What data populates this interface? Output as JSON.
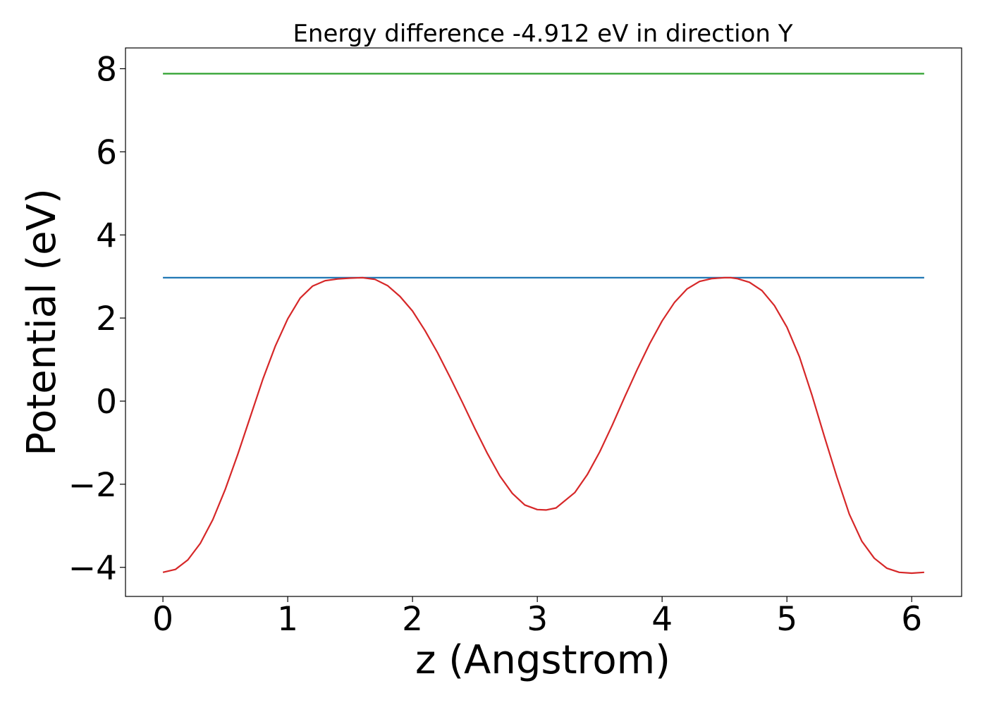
{
  "chart_data": {
    "type": "line",
    "title": "Energy difference -4.912 eV in direction Y",
    "xlabel": "z (Angstrom)",
    "ylabel": "Potential (eV)",
    "xlim": [
      -0.3,
      6.4
    ],
    "ylim": [
      -4.7,
      8.5
    ],
    "xticks": [
      0,
      1,
      2,
      3,
      4,
      5,
      6
    ],
    "xtick_labels": [
      "0",
      "1",
      "2",
      "3",
      "4",
      "5",
      "6"
    ],
    "yticks": [
      -4,
      -2,
      0,
      2,
      4,
      6,
      8
    ],
    "ytick_labels": [
      "−4",
      "−2",
      "0",
      "2",
      "4",
      "6",
      "8"
    ],
    "grid": false,
    "legend": "none",
    "series": [
      {
        "color": "#2ca02c",
        "x": [
          0,
          6.1
        ],
        "y": [
          7.88,
          7.88
        ]
      },
      {
        "color": "#1f77b4",
        "x": [
          0,
          6.1
        ],
        "y": [
          2.97,
          2.97
        ]
      },
      {
        "color": "#d62728",
        "x": [
          0,
          0.1,
          0.2,
          0.3,
          0.4,
          0.5,
          0.6,
          0.7,
          0.8,
          0.9,
          1.0,
          1.1,
          1.2,
          1.3,
          1.4,
          1.5,
          1.6,
          1.7,
          1.8,
          1.9,
          2.0,
          2.1,
          2.2,
          2.3,
          2.4,
          2.5,
          2.6,
          2.7,
          2.8,
          2.9,
          3.0,
          3.07,
          3.15,
          3.3,
          3.4,
          3.5,
          3.6,
          3.7,
          3.8,
          3.9,
          4.0,
          4.1,
          4.2,
          4.3,
          4.4,
          4.5,
          4.55,
          4.6,
          4.7,
          4.8,
          4.9,
          5.0,
          5.1,
          5.2,
          5.3,
          5.4,
          5.5,
          5.6,
          5.7,
          5.8,
          5.9,
          6.0,
          6.1
        ],
        "y": [
          -4.12,
          -4.05,
          -3.82,
          -3.42,
          -2.85,
          -2.12,
          -1.28,
          -0.38,
          0.52,
          1.32,
          1.98,
          2.48,
          2.77,
          2.9,
          2.94,
          2.96,
          2.97,
          2.93,
          2.78,
          2.52,
          2.17,
          1.7,
          1.17,
          0.58,
          -0.03,
          -0.66,
          -1.26,
          -1.8,
          -2.22,
          -2.5,
          -2.61,
          -2.62,
          -2.57,
          -2.2,
          -1.77,
          -1.22,
          -0.58,
          0.1,
          0.76,
          1.38,
          1.93,
          2.38,
          2.7,
          2.88,
          2.95,
          2.97,
          2.97,
          2.95,
          2.86,
          2.66,
          2.3,
          1.78,
          1.07,
          0.15,
          -0.85,
          -1.82,
          -2.72,
          -3.37,
          -3.78,
          -4.02,
          -4.12,
          -4.14,
          -4.12
        ]
      }
    ]
  }
}
